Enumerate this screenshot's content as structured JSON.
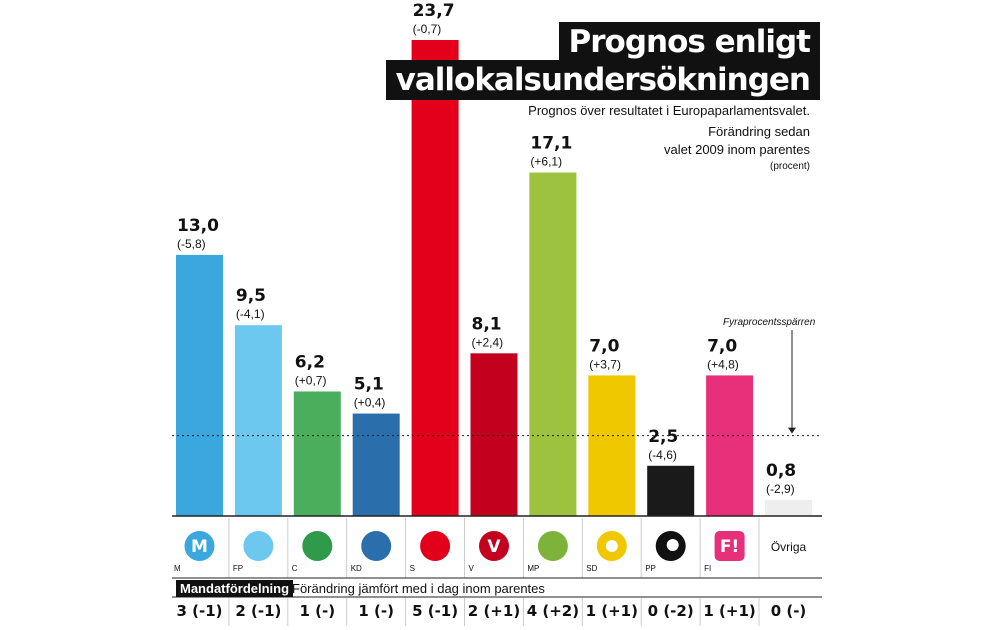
{
  "title_line1": "Prognos enligt",
  "title_line2": "vallokalsundersökningen",
  "subtitle": "Prognos över resultatet i Europaparlamentsvalet.",
  "note_line1": "Förändring sedan",
  "note_line2": "valet 2009 inom parentes",
  "unit": "(procent)",
  "threshold_label": "Fyraprocentsspärren",
  "mandate_header": "Mandatfördelning",
  "mandate_description": "Förändring jämfört med i dag inom parentes",
  "chart_data": {
    "type": "bar",
    "categories": [
      "M",
      "FP",
      "C",
      "KD",
      "S",
      "V",
      "MP",
      "SD",
      "PP",
      "FI",
      "Övriga"
    ],
    "values": [
      13.0,
      9.5,
      6.2,
      5.1,
      23.7,
      8.1,
      17.1,
      7.0,
      2.5,
      7.0,
      0.8
    ],
    "value_labels": [
      "13,0",
      "9,5",
      "6,2",
      "5,1",
      "23,7",
      "8,1",
      "17,1",
      "7,0",
      "2,5",
      "7,0",
      "0,8"
    ],
    "change_labels": [
      "(-5,8)",
      "(-4,1)",
      "(+0,7)",
      "(+0,4)",
      "(-0,7)",
      "(+2,4)",
      "(+6,1)",
      "(+3,7)",
      "(-4,6)",
      "(+4,8)",
      "(-2,9)"
    ],
    "colors": [
      "#3aa8df",
      "#6cc8ee",
      "#4aae5c",
      "#2a6fab",
      "#e2001a",
      "#c4001f",
      "#9dc23d",
      "#f0c800",
      "#1a1a1a",
      "#e8307a",
      "#eeeeee"
    ],
    "logo_colors": [
      "#3aa8df",
      "#6cc8ee",
      "#2f9a4a",
      "#2a6fab",
      "#e2001a",
      "#c4001f",
      "#7db33b",
      "#f0c800",
      "#111111",
      "#e8307a",
      "#ffffff"
    ],
    "logo_letters": [
      "M",
      "",
      "",
      "",
      "",
      "V",
      "",
      "",
      "",
      "F!",
      ""
    ],
    "threshold": 4.0,
    "ylim": [
      0,
      25
    ],
    "mandates": [
      "3 (-1)",
      "2 (-1)",
      "1 (-)",
      "1 (-)",
      "5 (-1)",
      "2 (+1)",
      "4 (+2)",
      "1 (+1)",
      "0 (-2)",
      "1 (+1)",
      "0 (-)"
    ]
  }
}
